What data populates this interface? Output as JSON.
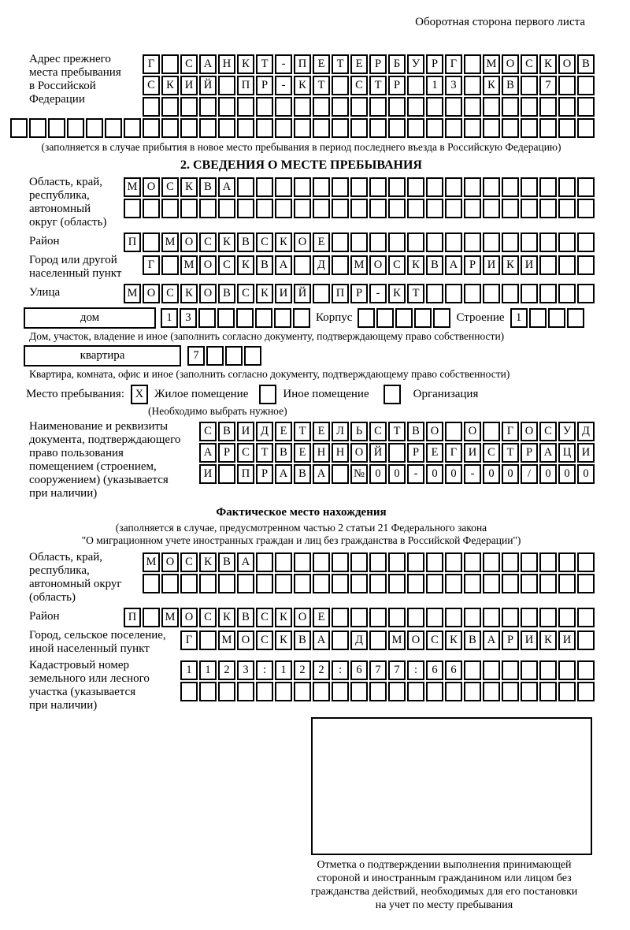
{
  "header": {
    "title": "Оборотная сторона первого листа"
  },
  "prev_address": {
    "label_lines": [
      "Адрес прежнего",
      "места пребывания",
      "в Российской",
      "Федерации"
    ],
    "row1": [
      "Г",
      "",
      "С",
      "А",
      "Н",
      "К",
      "Т",
      "-",
      "П",
      "Е",
      "Т",
      "Е",
      "Р",
      "Б",
      "У",
      "Р",
      "Г",
      "",
      "М",
      "О",
      "С",
      "К",
      "О",
      "В"
    ],
    "row2": [
      "С",
      "К",
      "И",
      "Й",
      "",
      "П",
      "Р",
      "-",
      "К",
      "Т",
      "",
      "С",
      "Т",
      "Р",
      "",
      "1",
      "3",
      "",
      "К",
      "В",
      "",
      "7",
      "",
      ""
    ],
    "row3": [
      "",
      "",
      "",
      "",
      "",
      "",
      "",
      "",
      "",
      "",
      "",
      "",
      "",
      "",
      "",
      "",
      "",
      "",
      "",
      "",
      "",
      "",
      "",
      ""
    ],
    "row4": [
      "",
      "",
      "",
      "",
      "",
      "",
      "",
      "",
      "",
      "",
      "",
      "",
      "",
      "",
      "",
      "",
      "",
      "",
      "",
      "",
      "",
      "",
      "",
      "",
      "",
      "",
      "",
      "",
      "",
      "",
      ""
    ],
    "note": "(заполняется в случае прибытия в новое место пребывания в период последнего въезда в Российскую Федерацию)"
  },
  "section2": {
    "title": "2. СВЕДЕНИЯ О МЕСТЕ ПРЕБЫВАНИЯ",
    "region": {
      "label_lines": [
        "Область, край,",
        "республика,",
        "автономный",
        "округ (область)"
      ],
      "row1": [
        "М",
        "О",
        "С",
        "К",
        "В",
        "А",
        "",
        "",
        "",
        "",
        "",
        "",
        "",
        "",
        "",
        "",
        "",
        "",
        "",
        "",
        "",
        "",
        "",
        "",
        ""
      ],
      "row2": [
        "",
        "",
        "",
        "",
        "",
        "",
        "",
        "",
        "",
        "",
        "",
        "",
        "",
        "",
        "",
        "",
        "",
        "",
        "",
        "",
        "",
        "",
        "",
        "",
        ""
      ]
    },
    "district": {
      "label": "Район",
      "row": [
        "П",
        "",
        "М",
        "О",
        "С",
        "К",
        "В",
        "С",
        "К",
        "О",
        "Е",
        "",
        "",
        "",
        "",
        "",
        "",
        "",
        "",
        "",
        "",
        "",
        "",
        "",
        ""
      ]
    },
    "city": {
      "label_lines": [
        "Город или другой",
        "населенный пункт"
      ],
      "row": [
        "Г",
        "",
        "М",
        "О",
        "С",
        "К",
        "В",
        "А",
        "",
        "Д",
        "",
        "М",
        "О",
        "С",
        "К",
        "В",
        "А",
        "Р",
        "И",
        "К",
        "И",
        "",
        "",
        ""
      ]
    },
    "street": {
      "label": "Улица",
      "row": [
        "М",
        "О",
        "С",
        "К",
        "О",
        "В",
        "С",
        "К",
        "И",
        "Й",
        "",
        "П",
        "Р",
        "-",
        "К",
        "Т",
        "",
        "",
        "",
        "",
        "",
        "",
        "",
        "",
        ""
      ]
    },
    "house": {
      "box_label": "дом",
      "cells": [
        "1",
        "3",
        "",
        "",
        "",
        "",
        "",
        ""
      ],
      "korpus_label": "Корпус",
      "korpus_cells": [
        "",
        "",
        "",
        "",
        ""
      ],
      "stroenie_label": "Строение",
      "stroenie_cells": [
        "1",
        "",
        "",
        ""
      ],
      "note": "Дом, участок, владение и иное (заполнить согласно документу, подтверждающему право собственности)"
    },
    "apartment": {
      "box_label": "квартира",
      "cells": [
        "7",
        "",
        "",
        ""
      ],
      "note": "Квартира, комната, офис и иное (заполнить согласно документу, подтверждающему право собственности)"
    },
    "stay": {
      "label": "Место пребывания:",
      "options": [
        {
          "mark": "X",
          "label": "Жилое помещение"
        },
        {
          "mark": "",
          "label": "Иное помещение"
        },
        {
          "mark": "",
          "label": "Организация"
        }
      ],
      "choose_note": "(Необходимо выбрать нужное)"
    },
    "document": {
      "label_lines": [
        "Наименование и реквизиты",
        "документа, подтверждающего",
        "право пользования",
        "помещением (строением,",
        "сооружением) (указывается",
        "при наличии)"
      ],
      "row1": [
        "С",
        "В",
        "И",
        "Д",
        "Е",
        "Т",
        "Е",
        "Л",
        "Ь",
        "С",
        "Т",
        "В",
        "О",
        "",
        "О",
        "",
        "Г",
        "О",
        "С",
        "У",
        "Д"
      ],
      "row2": [
        "А",
        "Р",
        "С",
        "Т",
        "В",
        "Е",
        "Н",
        "Н",
        "О",
        "Й",
        "",
        "Р",
        "Е",
        "Г",
        "И",
        "С",
        "Т",
        "Р",
        "А",
        "Ц",
        "И"
      ],
      "row3": [
        "И",
        "",
        "П",
        "Р",
        "А",
        "В",
        "А",
        "",
        "№",
        "0",
        "0",
        "-",
        "0",
        "0",
        "-",
        "0",
        "0",
        "/",
        "0",
        "0",
        "0"
      ]
    }
  },
  "factual": {
    "title": "Фактическое место нахождения",
    "note_lines": [
      "(заполняется в случае, предусмотренном частью 2 статьи 21 Федерального закона",
      "\"О миграционном учете иностранных граждан и лиц без гражданства в Российской Федерации\")"
    ],
    "region": {
      "label_lines": [
        "Область, край,",
        "республика,",
        "автономный округ",
        "(область)"
      ],
      "row1": [
        "М",
        "О",
        "С",
        "К",
        "В",
        "А",
        "",
        "",
        "",
        "",
        "",
        "",
        "",
        "",
        "",
        "",
        "",
        "",
        "",
        "",
        "",
        "",
        "",
        ""
      ],
      "row2": [
        "",
        "",
        "",
        "",
        "",
        "",
        "",
        "",
        "",
        "",
        "",
        "",
        "",
        "",
        "",
        "",
        "",
        "",
        "",
        "",
        "",
        "",
        "",
        ""
      ]
    },
    "district": {
      "label": "Район",
      "row": [
        "П",
        "",
        "М",
        "О",
        "С",
        "К",
        "В",
        "С",
        "К",
        "О",
        "Е",
        "",
        "",
        "",
        "",
        "",
        "",
        "",
        "",
        "",
        "",
        "",
        "",
        "",
        ""
      ]
    },
    "city": {
      "label_lines": [
        "Город, сельское поселение,",
        "иной населенный пункт"
      ],
      "row": [
        "Г",
        "",
        "М",
        "О",
        "С",
        "К",
        "В",
        "А",
        "",
        "Д",
        "",
        "М",
        "О",
        "С",
        "К",
        "В",
        "А",
        "Р",
        "И",
        "К",
        "И",
        ""
      ]
    },
    "cadastral": {
      "label_lines": [
        "Кадастровый номер",
        "земельного или лесного",
        "участка (указывается",
        "при наличии)"
      ],
      "row1": [
        "1",
        "1",
        "2",
        "3",
        ":",
        "1",
        "2",
        "2",
        ":",
        "6",
        "7",
        "7",
        ":",
        "6",
        "6",
        "",
        "",
        "",
        "",
        "",
        "",
        ""
      ],
      "row2": [
        "",
        "",
        "",
        "",
        "",
        "",
        "",
        "",
        "",
        "",
        "",
        "",
        "",
        "",
        "",
        "",
        "",
        "",
        "",
        "",
        "",
        ""
      ]
    },
    "stamp_caption_lines": [
      "Отметка о подтверждении выполнения принимающей",
      "стороной и иностранным гражданином или лицом без",
      "гражданства действий, необходимых для его постановки",
      "на учет по месту пребывания"
    ]
  }
}
